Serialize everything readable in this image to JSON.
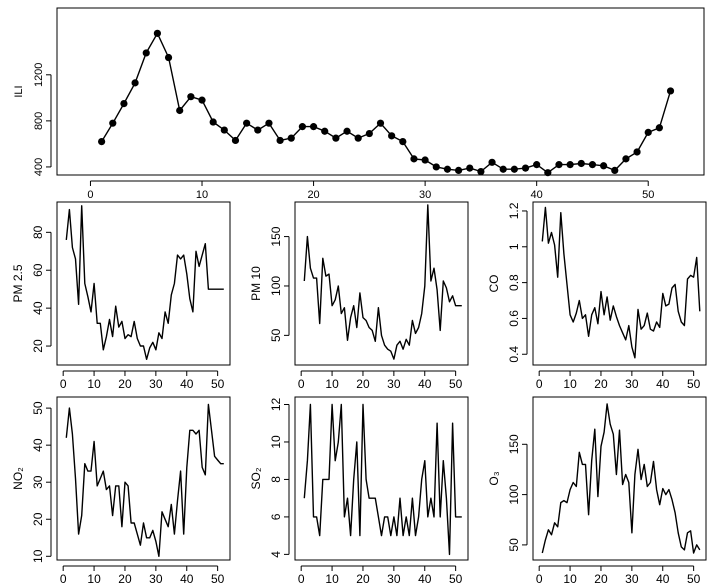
{
  "chart_data": [
    {
      "type": "line",
      "ylabel": "ILI",
      "xlabel": "",
      "markers": true,
      "xlim": [
        -3,
        55
      ],
      "ylim": [
        330,
        1780
      ],
      "xticks": [
        0,
        10,
        20,
        30,
        40,
        50
      ],
      "yticks": [
        400,
        800,
        1200
      ],
      "x": [
        1,
        2,
        3,
        4,
        5,
        6,
        7,
        8,
        9,
        10,
        11,
        12,
        13,
        14,
        15,
        16,
        17,
        18,
        19,
        20,
        21,
        22,
        23,
        24,
        25,
        26,
        27,
        28,
        29,
        30,
        31,
        32,
        33,
        34,
        35,
        36,
        37,
        38,
        39,
        40,
        41,
        42,
        43,
        44,
        45,
        46,
        47,
        48,
        49,
        50,
        51,
        52
      ],
      "values": [
        620,
        780,
        950,
        1130,
        1390,
        1560,
        1350,
        890,
        1010,
        980,
        790,
        720,
        630,
        780,
        720,
        780,
        630,
        650,
        750,
        750,
        710,
        650,
        710,
        650,
        690,
        780,
        670,
        620,
        470,
        460,
        400,
        380,
        370,
        390,
        360,
        440,
        380,
        380,
        390,
        420,
        350,
        420,
        420,
        430,
        420,
        410,
        370,
        470,
        530,
        700,
        740,
        1060
      ]
    },
    {
      "type": "line",
      "ylabel": "PM 2.5",
      "xlim": [
        -2,
        54
      ],
      "ylim": [
        10,
        96
      ],
      "xticks": [
        0,
        10,
        20,
        30,
        40,
        50
      ],
      "yticks": [
        20,
        40,
        60,
        80
      ],
      "x": [
        1,
        2,
        3,
        4,
        5,
        6,
        7,
        8,
        9,
        10,
        11,
        12,
        13,
        14,
        15,
        16,
        17,
        18,
        19,
        20,
        21,
        22,
        23,
        24,
        25,
        26,
        27,
        28,
        29,
        30,
        31,
        32,
        33,
        34,
        35,
        36,
        37,
        38,
        39,
        40,
        41,
        42,
        43,
        44,
        45,
        46,
        47,
        48,
        49,
        50,
        51,
        52
      ],
      "values": [
        76,
        92,
        72,
        66,
        42,
        94,
        53,
        46,
        38,
        53,
        32,
        32,
        18,
        25,
        34,
        25,
        41,
        30,
        33,
        24,
        26,
        25,
        33,
        24,
        20,
        20,
        13,
        19,
        22,
        18,
        27,
        24,
        38,
        32,
        47,
        53,
        68,
        66,
        68,
        58,
        45,
        38,
        70,
        62,
        68,
        74,
        50,
        50,
        50,
        50,
        50,
        50
      ]
    },
    {
      "type": "line",
      "ylabel": "PM 10",
      "xlim": [
        -2,
        54
      ],
      "ylim": [
        20,
        185
      ],
      "xticks": [
        0,
        10,
        20,
        30,
        40,
        50
      ],
      "yticks": [
        50,
        100,
        150
      ],
      "x": [
        1,
        2,
        3,
        4,
        5,
        6,
        7,
        8,
        9,
        10,
        11,
        12,
        13,
        14,
        15,
        16,
        17,
        18,
        19,
        20,
        21,
        22,
        23,
        24,
        25,
        26,
        27,
        28,
        29,
        30,
        31,
        32,
        33,
        34,
        35,
        36,
        37,
        38,
        39,
        40,
        41,
        42,
        43,
        44,
        45,
        46,
        47,
        48,
        49,
        50,
        51,
        52
      ],
      "values": [
        105,
        150,
        118,
        108,
        108,
        62,
        128,
        110,
        112,
        80,
        86,
        100,
        72,
        78,
        45,
        68,
        80,
        58,
        93,
        68,
        65,
        58,
        55,
        44,
        78,
        50,
        40,
        36,
        34,
        26,
        40,
        44,
        36,
        46,
        40,
        65,
        52,
        58,
        72,
        100,
        182,
        105,
        118,
        96,
        55,
        105,
        98,
        84,
        90,
        80,
        80,
        80
      ]
    },
    {
      "type": "line",
      "ylabel": "CO",
      "xlim": [
        -2,
        54
      ],
      "ylim": [
        0.34,
        1.25
      ],
      "xticks": [
        0,
        10,
        20,
        30,
        40,
        50
      ],
      "yticks": [
        0.4,
        0.6,
        0.8,
        1.0,
        1.2
      ],
      "x": [
        1,
        2,
        3,
        4,
        5,
        6,
        7,
        8,
        9,
        10,
        11,
        12,
        13,
        14,
        15,
        16,
        17,
        18,
        19,
        20,
        21,
        22,
        23,
        24,
        25,
        26,
        27,
        28,
        29,
        30,
        31,
        32,
        33,
        34,
        35,
        36,
        37,
        38,
        39,
        40,
        41,
        42,
        43,
        44,
        45,
        46,
        47,
        48,
        49,
        50,
        51,
        52
      ],
      "values": [
        1.03,
        1.22,
        1.02,
        1.08,
        1.01,
        0.83,
        1.19,
        0.96,
        0.79,
        0.62,
        0.58,
        0.63,
        0.7,
        0.6,
        0.62,
        0.5,
        0.62,
        0.66,
        0.57,
        0.75,
        0.62,
        0.72,
        0.59,
        0.67,
        0.61,
        0.56,
        0.52,
        0.48,
        0.56,
        0.44,
        0.38,
        0.65,
        0.54,
        0.56,
        0.63,
        0.54,
        0.53,
        0.58,
        0.55,
        0.74,
        0.67,
        0.68,
        0.77,
        0.79,
        0.64,
        0.58,
        0.56,
        0.82,
        0.84,
        0.83,
        0.94,
        0.64
      ]
    },
    {
      "type": "line",
      "ylabel": "NO₂",
      "xlim": [
        -2,
        54
      ],
      "ylim": [
        9,
        53
      ],
      "xticks": [
        0,
        10,
        20,
        30,
        40,
        50
      ],
      "yticks": [
        10,
        20,
        30,
        40,
        50
      ],
      "x": [
        1,
        2,
        3,
        4,
        5,
        6,
        7,
        8,
        9,
        10,
        11,
        12,
        13,
        14,
        15,
        16,
        17,
        18,
        19,
        20,
        21,
        22,
        23,
        24,
        25,
        26,
        27,
        28,
        29,
        30,
        31,
        32,
        33,
        34,
        35,
        36,
        37,
        38,
        39,
        40,
        41,
        42,
        43,
        44,
        45,
        46,
        47,
        48,
        49,
        50,
        51,
        52
      ],
      "values": [
        42,
        50,
        43,
        31,
        16,
        21,
        35,
        33,
        33,
        41,
        29,
        31,
        33,
        28,
        29,
        21,
        29,
        29,
        18,
        30,
        29,
        19,
        19,
        16,
        13,
        19,
        15,
        15,
        17,
        14,
        10,
        22,
        20,
        18,
        24,
        16,
        25,
        33,
        16,
        34,
        44,
        44,
        43,
        44,
        34,
        32,
        51,
        44,
        37,
        36,
        35,
        35
      ]
    },
    {
      "type": "line",
      "ylabel": "SO₂",
      "xlim": [
        -2,
        54
      ],
      "ylim": [
        3.7,
        12.4
      ],
      "xticks": [
        0,
        10,
        20,
        30,
        40,
        50
      ],
      "yticks": [
        4,
        6,
        8,
        10,
        12
      ],
      "x": [
        1,
        2,
        3,
        4,
        5,
        6,
        7,
        8,
        9,
        10,
        11,
        12,
        13,
        14,
        15,
        16,
        17,
        18,
        19,
        20,
        21,
        22,
        23,
        24,
        25,
        26,
        27,
        28,
        29,
        30,
        31,
        32,
        33,
        34,
        35,
        36,
        37,
        38,
        39,
        40,
        41,
        42,
        43,
        44,
        45,
        46,
        47,
        48,
        49,
        50,
        51,
        52
      ],
      "values": [
        7,
        9,
        12,
        6,
        6,
        5,
        8,
        8,
        8,
        12,
        9,
        10,
        12,
        6,
        7,
        5,
        8,
        10,
        5,
        12,
        8,
        7,
        7,
        7,
        6,
        5,
        6,
        6,
        5,
        6,
        5,
        7,
        5,
        6,
        5,
        7,
        5,
        6,
        8,
        9,
        6,
        7,
        6,
        11,
        6,
        9,
        7,
        4,
        11,
        6,
        6,
        6
      ]
    },
    {
      "type": "line",
      "ylabel": "O₃",
      "xlim": [
        -2,
        54
      ],
      "ylim": [
        35,
        197
      ],
      "xticks": [
        0,
        10,
        20,
        30,
        40,
        50
      ],
      "yticks": [
        50,
        100,
        150
      ],
      "x": [
        1,
        2,
        3,
        4,
        5,
        6,
        7,
        8,
        9,
        10,
        11,
        12,
        13,
        14,
        15,
        16,
        17,
        18,
        19,
        20,
        21,
        22,
        23,
        24,
        25,
        26,
        27,
        28,
        29,
        30,
        31,
        32,
        33,
        34,
        35,
        36,
        37,
        38,
        39,
        40,
        41,
        42,
        43,
        44,
        45,
        46,
        47,
        48,
        49,
        50,
        51,
        52
      ],
      "values": [
        42,
        55,
        65,
        60,
        72,
        68,
        92,
        94,
        92,
        105,
        112,
        108,
        142,
        130,
        130,
        80,
        134,
        165,
        98,
        148,
        162,
        190,
        170,
        160,
        120,
        164,
        110,
        120,
        112,
        62,
        120,
        145,
        115,
        130,
        108,
        112,
        133,
        105,
        90,
        106,
        100,
        105,
        95,
        82,
        62,
        48,
        45,
        62,
        64,
        42,
        50,
        45
      ]
    }
  ]
}
